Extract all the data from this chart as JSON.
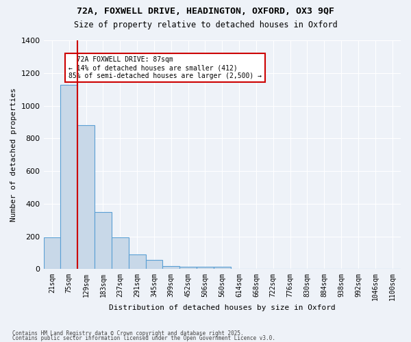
{
  "title_line1": "72A, FOXWELL DRIVE, HEADINGTON, OXFORD, OX3 9QF",
  "title_line2": "Size of property relative to detached houses in Oxford",
  "xlabel": "Distribution of detached houses by size in Oxford",
  "ylabel": "Number of detached properties",
  "categories": [
    "21sqm",
    "75sqm",
    "129sqm",
    "183sqm",
    "237sqm",
    "291sqm",
    "345sqm",
    "399sqm",
    "452sqm",
    "506sqm",
    "560sqm",
    "614sqm",
    "668sqm",
    "722sqm",
    "776sqm",
    "830sqm",
    "884sqm",
    "938sqm",
    "992sqm",
    "1046sqm",
    "1100sqm"
  ],
  "bar_heights": [
    195,
    1130,
    880,
    350,
    195,
    90,
    55,
    20,
    15,
    15,
    15,
    0,
    0,
    0,
    0,
    0,
    0,
    0,
    0,
    0,
    0
  ],
  "ylim": [
    0,
    1400
  ],
  "yticks": [
    0,
    200,
    400,
    600,
    800,
    1000,
    1200,
    1400
  ],
  "property_label": "72A FOXWELL DRIVE: 87sqm",
  "pct_smaller": "14% of detached houses are smaller (412)",
  "pct_larger": "85% of semi-detached houses are larger (2,500)",
  "vline_x": 2.0,
  "bar_color": "#c8d8e8",
  "bar_edge_color": "#5a9fd4",
  "vline_color": "#cc0000",
  "annotation_box_edgecolor": "#cc0000",
  "background_color": "#eef2f8",
  "grid_color": "#ffffff",
  "footer_line1": "Contains HM Land Registry data © Crown copyright and database right 2025.",
  "footer_line2": "Contains public sector information licensed under the Open Government Licence v3.0."
}
